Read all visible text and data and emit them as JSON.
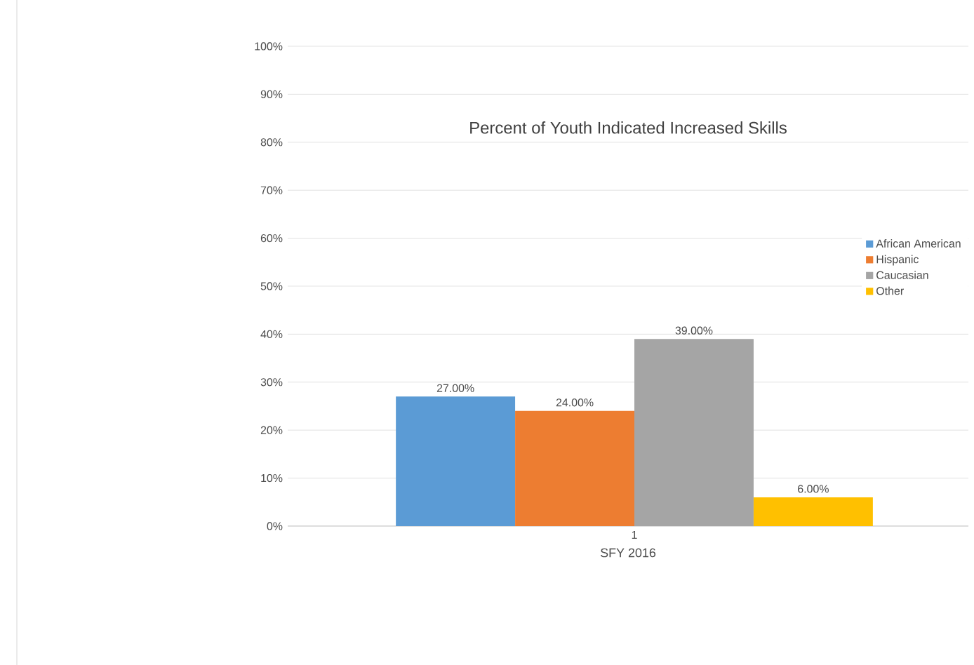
{
  "chart_data": {
    "type": "bar",
    "title": "Percent of Youth Indicated Increased Skills",
    "xlabel": "SFY 2016",
    "categories": [
      "1"
    ],
    "series": [
      {
        "name": "African American",
        "color": "#5b9bd5",
        "values": [
          27
        ],
        "value_labels": [
          "27.00%"
        ]
      },
      {
        "name": "Hispanic",
        "color": "#ed7d31",
        "values": [
          24
        ],
        "value_labels": [
          "24.00%"
        ]
      },
      {
        "name": "Caucasian",
        "color": "#a5a5a5",
        "values": [
          39
        ],
        "value_labels": [
          "39.00%"
        ]
      },
      {
        "name": "Other",
        "color": "#ffc000",
        "values": [
          6
        ],
        "value_labels": [
          "6.00%"
        ]
      }
    ],
    "ylim": [
      0,
      100
    ],
    "yticks": [
      {
        "value": 0,
        "label": "0%"
      },
      {
        "value": 10,
        "label": "10%"
      },
      {
        "value": 20,
        "label": "20%"
      },
      {
        "value": 30,
        "label": "30%"
      },
      {
        "value": 40,
        "label": "40%"
      },
      {
        "value": 50,
        "label": "50%"
      },
      {
        "value": 60,
        "label": "60%"
      },
      {
        "value": 70,
        "label": "70%"
      },
      {
        "value": 80,
        "label": "80%"
      },
      {
        "value": 90,
        "label": "90%"
      },
      {
        "value": 100,
        "label": "100%"
      }
    ],
    "grid": "y",
    "legend": "right"
  }
}
